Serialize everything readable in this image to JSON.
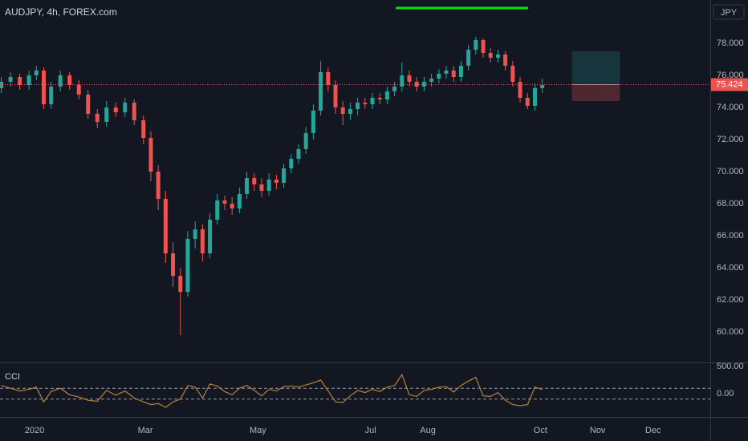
{
  "chart_data": [
    {
      "type": "candlestick",
      "title": "AUDJPY, 4h, FOREX.com",
      "currency": "JPY",
      "up_color": "#26a69a",
      "down_color": "#ef5350",
      "x": [
        -18,
        -13,
        -8,
        -3,
        1,
        5,
        9,
        14,
        19,
        24,
        29,
        34,
        39,
        44,
        49,
        54,
        59,
        63,
        67,
        71,
        75,
        79,
        83,
        87,
        91,
        95,
        99,
        103,
        107,
        111,
        115,
        119,
        123,
        127,
        131,
        135,
        139,
        143,
        147,
        151,
        155,
        159,
        163,
        167,
        171,
        175,
        179,
        183,
        187,
        191,
        195,
        199,
        203,
        207,
        211,
        215,
        219,
        223,
        227,
        231,
        235,
        239,
        243,
        247,
        251,
        255,
        259,
        263,
        267,
        271,
        275
      ],
      "open": [
        75.2,
        75.6,
        75.9,
        75.4,
        76.0,
        76.3,
        74.2,
        75.3,
        76.0,
        75.4,
        74.8,
        73.6,
        73.1,
        74.0,
        73.7,
        74.3,
        73.2,
        72.1,
        70.0,
        68.3,
        64.9,
        63.5,
        62.5,
        65.8,
        66.4,
        64.9,
        67.0,
        68.2,
        68.0,
        67.7,
        68.6,
        69.6,
        69.2,
        68.8,
        69.5,
        69.3,
        70.2,
        70.8,
        71.4,
        72.4,
        73.8,
        76.2,
        75.4,
        74.0,
        73.6,
        73.9,
        74.3,
        74.2,
        74.6,
        74.5,
        75.0,
        75.3,
        76.0,
        75.6,
        75.3,
        75.6,
        75.8,
        76.1,
        76.3,
        75.9,
        76.6,
        77.6,
        78.2,
        77.4,
        77.1,
        77.3,
        76.6,
        75.6,
        74.6,
        74.1,
        75.2
      ],
      "high": [
        75.9,
        76.2,
        76.1,
        76.3,
        76.6,
        76.5,
        75.6,
        76.3,
        76.2,
        75.7,
        75.1,
        73.9,
        74.4,
        74.3,
        74.6,
        74.5,
        73.5,
        72.5,
        70.4,
        68.8,
        65.6,
        64.0,
        66.3,
        66.9,
        66.7,
        67.4,
        68.6,
        68.5,
        68.4,
        69.0,
        70.0,
        69.9,
        69.6,
        69.9,
        69.8,
        70.5,
        71.1,
        71.7,
        72.8,
        74.2,
        76.9,
        76.5,
        75.7,
        74.4,
        74.3,
        74.6,
        74.6,
        74.9,
        74.9,
        75.3,
        75.6,
        76.8,
        76.3,
        75.9,
        75.9,
        76.1,
        76.4,
        76.6,
        76.6,
        76.9,
        77.9,
        78.4,
        78.3,
        77.7,
        77.6,
        77.5,
        76.9,
        75.9,
        74.9,
        75.5,
        75.8
      ],
      "low": [
        74.9,
        75.3,
        75.1,
        75.1,
        75.7,
        73.9,
        73.9,
        75.0,
        75.1,
        74.5,
        73.3,
        72.7,
        72.8,
        73.4,
        73.4,
        72.9,
        71.7,
        69.4,
        67.6,
        64.3,
        62.8,
        59.8,
        62.2,
        65.2,
        64.4,
        64.6,
        66.7,
        67.6,
        67.3,
        67.4,
        68.3,
        68.8,
        68.4,
        68.5,
        68.9,
        69.0,
        69.9,
        70.5,
        71.1,
        72.0,
        73.5,
        75.0,
        73.6,
        72.9,
        73.2,
        73.5,
        73.9,
        73.9,
        74.2,
        74.2,
        74.7,
        75.0,
        75.3,
        75.0,
        75.0,
        75.3,
        75.5,
        75.8,
        75.6,
        75.6,
        76.3,
        77.3,
        77.1,
        76.8,
        76.8,
        76.3,
        75.3,
        74.3,
        73.9,
        73.8,
        74.9
      ],
      "close": [
        75.6,
        75.9,
        75.4,
        76.0,
        76.3,
        74.2,
        75.3,
        76.0,
        75.4,
        74.8,
        73.6,
        73.1,
        74.0,
        73.7,
        74.3,
        73.2,
        72.1,
        70.0,
        68.3,
        64.9,
        63.5,
        62.5,
        65.8,
        66.4,
        64.9,
        67.0,
        68.2,
        68.0,
        67.7,
        68.6,
        69.6,
        69.2,
        68.8,
        69.5,
        69.3,
        70.2,
        70.8,
        71.4,
        72.4,
        73.8,
        76.2,
        75.4,
        74.0,
        73.6,
        73.9,
        74.3,
        74.2,
        74.6,
        74.5,
        75.0,
        75.3,
        76.0,
        75.6,
        75.3,
        75.6,
        75.8,
        76.1,
        76.3,
        75.9,
        76.6,
        77.6,
        78.2,
        77.4,
        77.1,
        77.3,
        76.6,
        75.6,
        74.6,
        74.1,
        75.2,
        75.4
      ],
      "last_price": 75.424,
      "position": {
        "x": [
          291,
          317
        ],
        "target": 77.5,
        "entry": 75.424,
        "stop": 74.4
      },
      "xlim": [
        -18.7,
        366
      ],
      "xticks": [
        {
          "value": 0,
          "label": "2020"
        },
        {
          "value": 60,
          "label": "Mar"
        },
        {
          "value": 121,
          "label": "May"
        },
        {
          "value": 182,
          "label": "Jul"
        },
        {
          "value": 213,
          "label": "Aug"
        },
        {
          "value": 274,
          "label": "Oct"
        },
        {
          "value": 305,
          "label": "Nov"
        },
        {
          "value": 335,
          "label": "Dec"
        }
      ],
      "ylim": [
        58.1,
        80.7
      ],
      "yticks": [
        {
          "value": 60,
          "label": "60.000"
        },
        {
          "value": 62,
          "label": "62.000"
        },
        {
          "value": 64,
          "label": "64.000"
        },
        {
          "value": 66,
          "label": "66.000"
        },
        {
          "value": 68,
          "label": "68.000"
        },
        {
          "value": 70,
          "label": "70.000"
        },
        {
          "value": 72,
          "label": "72.000"
        },
        {
          "value": 74,
          "label": "74.000"
        },
        {
          "value": 76,
          "label": "76.000"
        },
        {
          "value": 78,
          "label": "78.000"
        }
      ]
    },
    {
      "type": "line",
      "title": "CCI",
      "color": "#b7823a",
      "values": [
        150,
        100,
        50,
        80,
        120,
        -150,
        40,
        100,
        -20,
        -60,
        -120,
        -140,
        60,
        -30,
        50,
        -80,
        -150,
        -200,
        -180,
        -250,
        -150,
        -100,
        150,
        120,
        -80,
        180,
        140,
        40,
        -20,
        100,
        150,
        60,
        -40,
        80,
        50,
        130,
        140,
        120,
        160,
        200,
        250,
        50,
        -150,
        -160,
        -40,
        60,
        20,
        80,
        40,
        120,
        150,
        350,
        -20,
        -50,
        60,
        80,
        120,
        130,
        30,
        150,
        230,
        300,
        -40,
        -50,
        20,
        -120,
        -200,
        -220,
        -200,
        120,
        80
      ],
      "levels": [
        100,
        -100
      ],
      "ylim": [
        -426,
        573
      ],
      "yticks": [
        {
          "value": 500,
          "label": "500.00"
        },
        {
          "value": 0,
          "label": "0.00"
        }
      ]
    }
  ]
}
